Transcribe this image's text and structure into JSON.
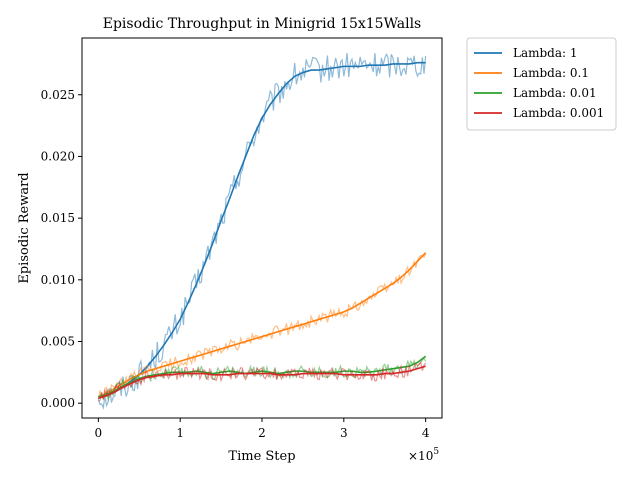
{
  "chart_data": {
    "type": "line",
    "title": "Episodic Throughput in Minigrid 15x15Walls",
    "xlabel": "Time Step",
    "ylabel": "Episodic Reward",
    "x_offset_label": "×10",
    "x_offset_exponent": "5",
    "xlim": [
      -0.2,
      4.2
    ],
    "ylim": [
      -0.0012,
      0.0296
    ],
    "x_ticks": [
      0,
      1,
      2,
      3,
      4
    ],
    "x_tick_labels": [
      "0",
      "1",
      "2",
      "3",
      "4"
    ],
    "y_ticks": [
      0.0,
      0.005,
      0.01,
      0.015,
      0.02,
      0.025
    ],
    "y_tick_labels": [
      "0.000",
      "0.005",
      "0.010",
      "0.015",
      "0.020",
      "0.025"
    ],
    "grid": false,
    "legend_position": "outside-top-right",
    "x": [
      0.0,
      0.1,
      0.2,
      0.3,
      0.4,
      0.5,
      0.6,
      0.7,
      0.8,
      0.9,
      1.0,
      1.1,
      1.2,
      1.3,
      1.4,
      1.5,
      1.6,
      1.7,
      1.8,
      1.9,
      2.0,
      2.1,
      2.2,
      2.3,
      2.4,
      2.5,
      2.6,
      2.7,
      2.8,
      2.9,
      3.0,
      3.1,
      3.2,
      3.3,
      3.4,
      3.5,
      3.6,
      3.7,
      3.8,
      3.9,
      4.0
    ],
    "series": [
      {
        "name": "Lambda: 1",
        "color": "#1f77b4",
        "values": [
          0.0005,
          0.0006,
          0.0009,
          0.0013,
          0.0018,
          0.0023,
          0.003,
          0.0038,
          0.0047,
          0.0057,
          0.0068,
          0.0082,
          0.0097,
          0.0113,
          0.013,
          0.0148,
          0.0165,
          0.0183,
          0.02,
          0.0217,
          0.0231,
          0.0242,
          0.0251,
          0.0259,
          0.0265,
          0.0268,
          0.027,
          0.027,
          0.0271,
          0.0272,
          0.0273,
          0.0273,
          0.0273,
          0.0274,
          0.0274,
          0.0274,
          0.0275,
          0.0275,
          0.0275,
          0.0276,
          0.0276
        ]
      },
      {
        "name": "Lambda: 0.1",
        "color": "#ff7f0e",
        "values": [
          0.0005,
          0.0008,
          0.0012,
          0.0016,
          0.002,
          0.0023,
          0.0026,
          0.0028,
          0.003,
          0.0032,
          0.0034,
          0.0036,
          0.0038,
          0.004,
          0.0042,
          0.0044,
          0.0046,
          0.0048,
          0.005,
          0.0052,
          0.0054,
          0.0056,
          0.0058,
          0.006,
          0.0062,
          0.0064,
          0.0066,
          0.0068,
          0.007,
          0.0072,
          0.0074,
          0.0077,
          0.0081,
          0.0085,
          0.0089,
          0.0093,
          0.0097,
          0.0102,
          0.0108,
          0.0115,
          0.0122
        ]
      },
      {
        "name": "Lambda: 0.01",
        "color": "#2ca02c",
        "values": [
          0.0005,
          0.0007,
          0.001,
          0.0014,
          0.0017,
          0.002,
          0.0022,
          0.0023,
          0.0024,
          0.0025,
          0.0025,
          0.0025,
          0.0026,
          0.0025,
          0.0024,
          0.0025,
          0.0026,
          0.0025,
          0.0024,
          0.0025,
          0.0026,
          0.0025,
          0.0024,
          0.0025,
          0.0026,
          0.0026,
          0.0025,
          0.0025,
          0.0025,
          0.0025,
          0.0026,
          0.0026,
          0.0025,
          0.0025,
          0.0026,
          0.0027,
          0.0028,
          0.0029,
          0.003,
          0.0033,
          0.0038
        ]
      },
      {
        "name": "Lambda: 0.001",
        "color": "#d62728",
        "values": [
          0.0004,
          0.0006,
          0.0009,
          0.0013,
          0.0016,
          0.0019,
          0.0021,
          0.0022,
          0.0023,
          0.0023,
          0.0024,
          0.0024,
          0.0024,
          0.0024,
          0.0023,
          0.0023,
          0.0023,
          0.0024,
          0.0024,
          0.0024,
          0.0024,
          0.0024,
          0.0023,
          0.0023,
          0.0023,
          0.0024,
          0.0024,
          0.0024,
          0.0024,
          0.0024,
          0.0023,
          0.0023,
          0.0023,
          0.0023,
          0.0023,
          0.0024,
          0.0024,
          0.0025,
          0.0026,
          0.0028,
          0.003
        ]
      }
    ]
  }
}
